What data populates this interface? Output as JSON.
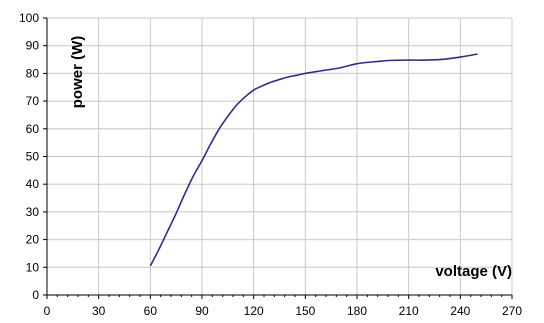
{
  "chart_data": {
    "type": "line",
    "title": "",
    "xlabel": "voltage (V)",
    "ylabel": "power (W)",
    "xlim": [
      0,
      270
    ],
    "ylim": [
      0,
      100
    ],
    "x_ticks": [
      0,
      30,
      60,
      90,
      120,
      150,
      180,
      210,
      240,
      270
    ],
    "y_ticks": [
      0,
      10,
      20,
      30,
      40,
      50,
      60,
      70,
      80,
      90,
      100
    ],
    "x_tick_labels": [
      "0",
      "30",
      "60",
      "90",
      "120",
      "150",
      "180",
      "210",
      "240",
      "270"
    ],
    "y_tick_labels": [
      "0",
      "10",
      "20",
      "30",
      "40",
      "50",
      "60",
      "70",
      "80",
      "90",
      "100"
    ],
    "grid": true,
    "legend": "none",
    "line_color": "#2e2e8a",
    "grid_color": "#c8c8c8",
    "series": [
      {
        "x": [
          60,
          65,
          70,
          75,
          80,
          85,
          90,
          95,
          100,
          105,
          110,
          115,
          120,
          125,
          130,
          135,
          140,
          145,
          150,
          160,
          170,
          180,
          190,
          200,
          210,
          220,
          230,
          240,
          250
        ],
        "values": [
          10.5,
          16.5,
          23,
          29.5,
          36.5,
          43,
          48.5,
          54.5,
          60,
          64.5,
          68.5,
          71.5,
          74,
          75.5,
          76.8,
          77.8,
          78.7,
          79.3,
          80,
          81,
          82,
          83.5,
          84.2,
          84.7,
          84.8,
          84.8,
          85.1,
          85.9,
          87
        ]
      }
    ]
  }
}
